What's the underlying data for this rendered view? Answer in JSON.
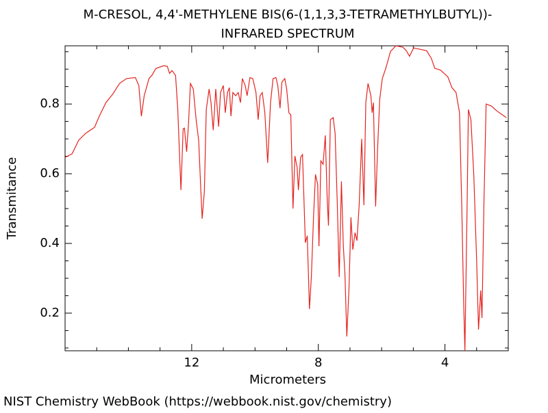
{
  "chart_data": {
    "type": "line",
    "title": [
      "M-CRESOL, 4,4'-METHYLENE BIS(6-(1,1,3,3-TETRAMETHYLBUTYL))-",
      "INFRARED SPECTRUM"
    ],
    "xlabel": "Micrometers",
    "ylabel": "Transmitance",
    "footer": "NIST Chemistry WebBook (https://webbook.nist.gov/chemistry)",
    "xlim": [
      16,
      2
    ],
    "ylim": [
      0.092,
      0.967
    ],
    "xticks": [
      12,
      8,
      4
    ],
    "yticks": [
      0.2,
      0.4,
      0.6,
      0.8
    ],
    "xminorticks": [
      15,
      14,
      13,
      11,
      10,
      9,
      7,
      6,
      5,
      3
    ],
    "yminorticks": [
      0.1,
      0.15,
      0.25,
      0.3,
      0.35,
      0.45,
      0.5,
      0.55,
      0.65,
      0.7,
      0.75,
      0.85,
      0.9,
      0.95
    ],
    "x": [
      16.0,
      15.78,
      15.57,
      15.35,
      15.07,
      14.92,
      14.71,
      14.49,
      14.28,
      14.06,
      13.78,
      13.67,
      13.59,
      13.5,
      13.35,
      13.26,
      13.13,
      12.88,
      12.77,
      12.7,
      12.62,
      12.51,
      12.44,
      12.34,
      12.27,
      12.23,
      12.16,
      12.1,
      12.04,
      11.95,
      11.86,
      11.78,
      11.71,
      11.67,
      11.6,
      11.54,
      11.45,
      11.39,
      11.32,
      11.24,
      11.15,
      11.09,
      11.0,
      10.94,
      10.87,
      10.81,
      10.76,
      10.7,
      10.61,
      10.53,
      10.46,
      10.4,
      10.31,
      10.25,
      10.16,
      10.07,
      9.97,
      9.9,
      9.84,
      9.77,
      9.69,
      9.6,
      9.51,
      9.43,
      9.34,
      9.28,
      9.21,
      9.15,
      9.06,
      9.0,
      8.93,
      8.87,
      8.8,
      8.74,
      8.67,
      8.63,
      8.56,
      8.5,
      8.41,
      8.35,
      8.28,
      8.22,
      8.15,
      8.09,
      8.02,
      7.98,
      7.92,
      7.85,
      7.78,
      7.72,
      7.68,
      7.62,
      7.53,
      7.47,
      7.4,
      7.34,
      7.27,
      7.21,
      7.16,
      7.1,
      7.03,
      6.97,
      6.91,
      6.84,
      6.78,
      6.71,
      6.63,
      6.56,
      6.5,
      6.43,
      6.34,
      6.3,
      6.26,
      6.19,
      6.13,
      6.06,
      5.98,
      5.87,
      5.72,
      5.55,
      5.33,
      5.22,
      5.12,
      4.99,
      4.79,
      4.58,
      4.43,
      4.32,
      4.15,
      3.91,
      3.78,
      3.65,
      3.54,
      3.47,
      3.41,
      3.37,
      3.3,
      3.26,
      3.18,
      3.09,
      3.0,
      2.94,
      2.87,
      2.83,
      2.77,
      2.7,
      2.53,
      2.36,
      2.06
    ],
    "series": [
      {
        "color": "#e3231e",
        "values": [
          0.647,
          0.657,
          0.696,
          0.716,
          0.733,
          0.765,
          0.804,
          0.829,
          0.859,
          0.873,
          0.876,
          0.853,
          0.765,
          0.824,
          0.873,
          0.882,
          0.902,
          0.91,
          0.908,
          0.888,
          0.896,
          0.882,
          0.784,
          0.553,
          0.729,
          0.731,
          0.663,
          0.745,
          0.859,
          0.843,
          0.755,
          0.696,
          0.549,
          0.471,
          0.549,
          0.784,
          0.843,
          0.804,
          0.725,
          0.843,
          0.735,
          0.833,
          0.853,
          0.775,
          0.833,
          0.847,
          0.765,
          0.833,
          0.824,
          0.833,
          0.804,
          0.873,
          0.853,
          0.824,
          0.876,
          0.873,
          0.833,
          0.755,
          0.824,
          0.833,
          0.775,
          0.631,
          0.804,
          0.873,
          0.876,
          0.853,
          0.788,
          0.863,
          0.873,
          0.843,
          0.775,
          0.769,
          0.5,
          0.651,
          0.618,
          0.553,
          0.647,
          0.655,
          0.402,
          0.422,
          0.212,
          0.304,
          0.48,
          0.598,
          0.569,
          0.392,
          0.637,
          0.627,
          0.71,
          0.529,
          0.451,
          0.755,
          0.761,
          0.716,
          0.51,
          0.304,
          0.578,
          0.392,
          0.314,
          0.133,
          0.275,
          0.475,
          0.382,
          0.431,
          0.408,
          0.51,
          0.7,
          0.51,
          0.804,
          0.859,
          0.824,
          0.775,
          0.804,
          0.506,
          0.667,
          0.814,
          0.873,
          0.902,
          0.951,
          0.967,
          0.963,
          0.953,
          0.937,
          0.961,
          0.957,
          0.953,
          0.931,
          0.902,
          0.898,
          0.878,
          0.847,
          0.833,
          0.775,
          0.51,
          0.235,
          0.092,
          0.51,
          0.784,
          0.755,
          0.598,
          0.353,
          0.153,
          0.265,
          0.186,
          0.51,
          0.8,
          0.794,
          0.78,
          0.761
        ]
      }
    ]
  }
}
